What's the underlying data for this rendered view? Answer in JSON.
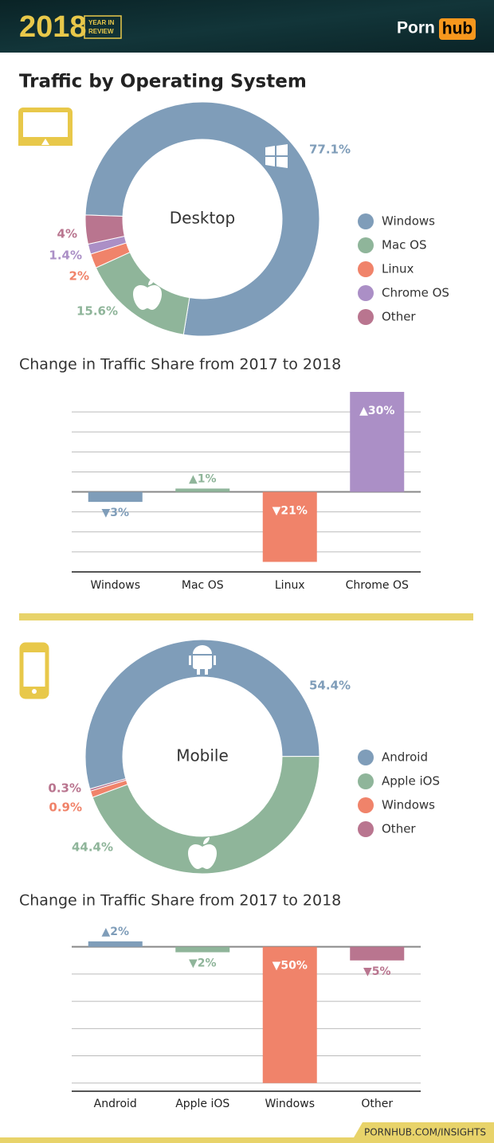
{
  "header": {
    "year": "2018",
    "badge": [
      "YEAR IN",
      "REVIEW"
    ],
    "brand": [
      "Porn",
      "hub"
    ]
  },
  "title": "Traffic by Operating System",
  "chart_data": [
    {
      "type": "donut",
      "center_label": "Desktop",
      "categories": [
        "Windows",
        "Mac OS",
        "Linux",
        "Chrome OS",
        "Other"
      ],
      "values": [
        77.1,
        15.6,
        2,
        1.4,
        4
      ],
      "value_labels": [
        "77.1%",
        "15.6%",
        "2%",
        "1.4%",
        "4%"
      ],
      "colors": [
        "#7f9db9",
        "#8fb59a",
        "#f0836a",
        "#ab8fc6",
        "#b9758f"
      ]
    },
    {
      "type": "bar",
      "title": "Change in Traffic Share from 2017 to 2018",
      "categories": [
        "Windows",
        "Mac OS",
        "Linux",
        "Chrome OS"
      ],
      "values": [
        -3,
        1,
        -21,
        30
      ],
      "value_labels": [
        "▼3%",
        "▲1%",
        "▼21%",
        "▲30%"
      ],
      "colors": [
        "#7f9db9",
        "#8fb59a",
        "#f0836a",
        "#ab8fc6"
      ],
      "ylim": [
        -24,
        30
      ],
      "yticks": [
        -18,
        -12,
        -6,
        0,
        6,
        12,
        18,
        24
      ],
      "grid": true
    },
    {
      "type": "donut",
      "center_label": "Mobile",
      "categories": [
        "Android",
        "Apple iOS",
        "Windows",
        "Other"
      ],
      "values": [
        54.4,
        44.4,
        0.9,
        0.3
      ],
      "value_labels": [
        "54.4%",
        "44.4%",
        "0.9%",
        "0.3%"
      ],
      "colors": [
        "#7f9db9",
        "#8fb59a",
        "#f0836a",
        "#b9758f"
      ]
    },
    {
      "type": "bar",
      "title": "Change in Traffic Share from 2017 to 2018",
      "categories": [
        "Android",
        "Apple iOS",
        "Windows",
        "Other"
      ],
      "values": [
        2,
        -2,
        -50,
        -5
      ],
      "value_labels": [
        "▲2%",
        "▼2%",
        "▼50%",
        "▼5%"
      ],
      "colors": [
        "#7f9db9",
        "#8fb59a",
        "#f0836a",
        "#b9758f"
      ],
      "ylim": [
        -53,
        4
      ],
      "yticks": [
        -50,
        -40,
        -30,
        -20,
        -10,
        0
      ],
      "grid": true
    }
  ],
  "footer": "PORNHUB.COM/INSIGHTS"
}
